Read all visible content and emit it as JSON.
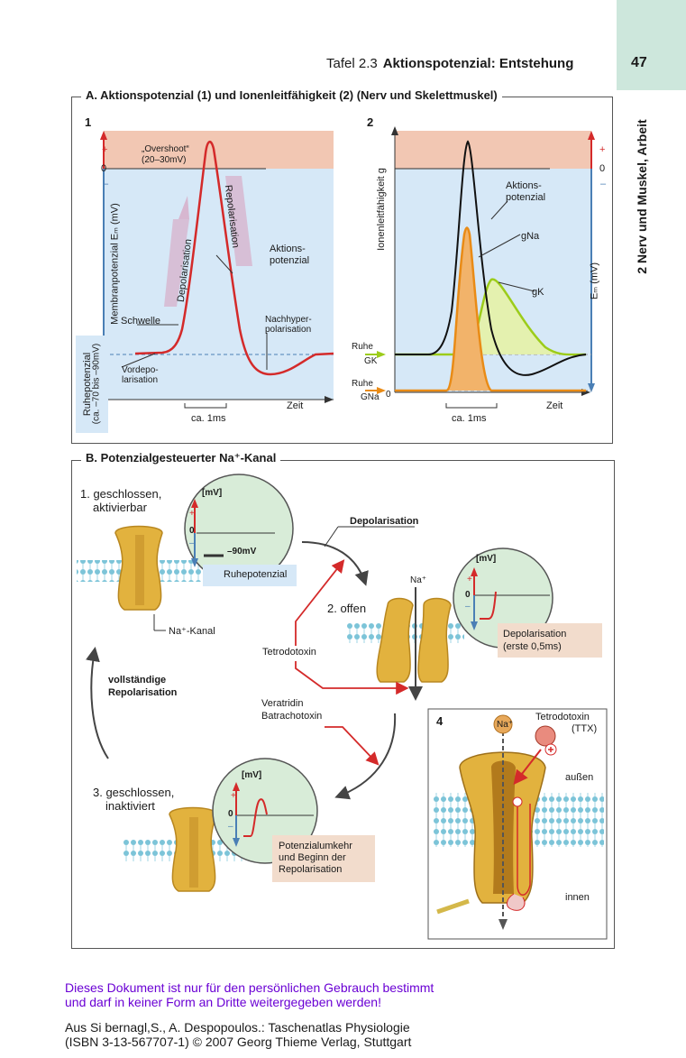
{
  "header": {
    "tafel": "Tafel 2.3",
    "title": "Aktionspotenzial: Entstehung",
    "page_number": "47",
    "side_title": "2 Nerv und Muskel, Arbeit"
  },
  "section_a": {
    "title": "A. Aktionspotenzial (1) und Ionenleitfähigkeit (2) (Nerv und Skelettmuskel)",
    "panel1": {
      "number": "1",
      "overshoot": "„Overshoot“",
      "overshoot_range": "(20–30mV)",
      "plus": "+",
      "zero": "0",
      "minus": "–",
      "y_axis": "Membranpotenzial Eₘ (mV)",
      "ruhe_label": "Ruhepotenzial",
      "ruhe_range": "(ca. –70 bis –90mV)",
      "depol": "Depolarisation",
      "repol": "Repolarisation",
      "aktions1": "Aktions-",
      "aktions2": "potenzial",
      "schwelle": "Schwelle",
      "nachhyper1": "Nachhyper-",
      "nachhyper2": "polarisation",
      "vordepo1": "Vordepo-",
      "vordepo2": "larisation",
      "zeit": "Zeit",
      "scale": "ca. 1ms"
    },
    "panel2": {
      "number": "2",
      "y_axis": "Ionenleitfähigkeit g",
      "y_axis_right": "Eₘ (mV)",
      "plus": "+",
      "zero": "0",
      "minus": "–",
      "aktions1": "Aktions-",
      "aktions2": "potenzial",
      "gna": "gNa",
      "gk": "gK",
      "ruhe_gk": "Ruhe",
      "gk_sub": "GK",
      "ruhe_gna": "Ruhe",
      "gna_sub": "GNa",
      "zero_left": "0",
      "zeit": "Zeit",
      "scale": "ca. 1ms"
    }
  },
  "section_b": {
    "title": "B. Potenzialgesteuerter Na⁺-Kanal",
    "state1_a": "1. geschlossen,",
    "state1_b": "aktivierbar",
    "mv": "[mV]",
    "plus": "+",
    "zero": "0",
    "minus": "–",
    "minus90": "–90mV",
    "ruhepotenzial": "Ruhepotenzial",
    "na_kanal": "Na⁺-Kanal",
    "depolarisation": "Depolarisation",
    "na": "Na⁺",
    "state2": "2. offen",
    "depol_box1": "Depolarisation",
    "depol_box2": "(erste 0,5ms)",
    "tetrodotoxin": "Tetrodotoxin",
    "voll1": "vollständige",
    "voll2": "Repolarisation",
    "veratridin": "Veratridin",
    "batrachotoxin": "Batrachotoxin",
    "state3_a": "3. geschlossen,",
    "state3_b": "inaktiviert",
    "umkehr1": "Potenzialumkehr",
    "umkehr2": "und Beginn der",
    "umkehr3": "Repolarisation",
    "panel4": "4",
    "ttx1": "Tetrodotoxin",
    "ttx2": "(TTX)",
    "aussen": "außen",
    "innen": "innen"
  },
  "footer": {
    "line1": "Dieses Dokument ist nur für den persönlichen Gebrauch bestimmt",
    "line2": "und darf in keiner Form an Dritte weitergegeben werden!",
    "line3": "Aus Si bernagl,S., A. Despopoulos.: Taschenatlas Physiologie",
    "line4": "(ISBN 3-13-567707-1) © 2007 Georg Thieme Verlag, Stuttgart"
  },
  "colors": {
    "overshoot_band": "#f2c7b3",
    "blue_band": "#d6e8f7",
    "ap_red": "#d42a2a",
    "gna_orange": "#e98b16",
    "gk_green": "#9ccc1a",
    "page_box": "#cde7dc",
    "footer_purple": "#6a00d4"
  }
}
